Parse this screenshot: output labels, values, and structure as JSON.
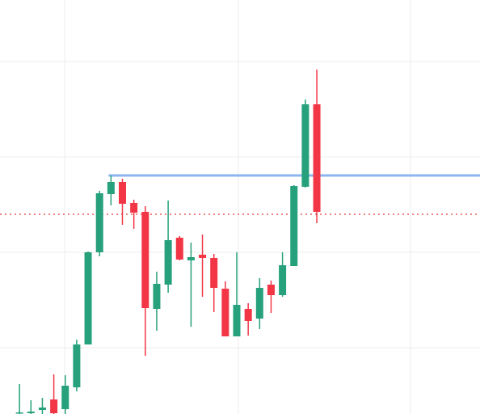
{
  "chart_data": {
    "type": "candlestick",
    "title": "",
    "xlabel": "",
    "ylabel": "",
    "grid": true,
    "ylim": [
      0,
      512
    ],
    "colors": {
      "up": "#26a17b",
      "down": "#f23645",
      "resistance": "#8cb6f0",
      "current_price": "#e53935",
      "grid": "#ececec"
    },
    "resistance_level": {
      "value": 295,
      "x_start": 9,
      "x_end": 52
    },
    "current_price_level": 247,
    "candles": [
      {
        "x": 1,
        "open": 2,
        "high": 37,
        "low": 0,
        "close": 2
      },
      {
        "x": 2,
        "open": 1,
        "high": 17,
        "low": 0,
        "close": 3
      },
      {
        "x": 3,
        "open": 5,
        "high": 20,
        "low": 0,
        "close": 8
      },
      {
        "x": 4,
        "open": 18,
        "high": 49,
        "low": 0,
        "close": 1
      },
      {
        "x": 5,
        "open": 6,
        "high": 48,
        "low": 0,
        "close": 35
      },
      {
        "x": 6,
        "open": 33,
        "high": 92,
        "low": 28,
        "close": 86
      },
      {
        "x": 7,
        "open": 86,
        "high": 201,
        "low": 86,
        "close": 200
      },
      {
        "x": 8,
        "open": 200,
        "high": 276,
        "low": 195,
        "close": 273
      },
      {
        "x": 9,
        "open": 272,
        "high": 295,
        "low": 258,
        "close": 287
      },
      {
        "x": 10,
        "open": 287,
        "high": 291,
        "low": 234,
        "close": 260
      },
      {
        "x": 11,
        "open": 261,
        "high": 265,
        "low": 229,
        "close": 249
      },
      {
        "x": 12,
        "open": 250,
        "high": 257,
        "low": 72,
        "close": 131
      },
      {
        "x": 13,
        "open": 130,
        "high": 176,
        "low": 103,
        "close": 161
      },
      {
        "x": 14,
        "open": 160,
        "high": 264,
        "low": 150,
        "close": 215
      },
      {
        "x": 15,
        "open": 218,
        "high": 220,
        "low": 190,
        "close": 191
      },
      {
        "x": 16,
        "open": 190,
        "high": 212,
        "low": 108,
        "close": 194
      },
      {
        "x": 17,
        "open": 197,
        "high": 222,
        "low": 145,
        "close": 193
      },
      {
        "x": 18,
        "open": 193,
        "high": 198,
        "low": 126,
        "close": 156
      },
      {
        "x": 19,
        "open": 155,
        "high": 164,
        "low": 96,
        "close": 96
      },
      {
        "x": 20,
        "open": 96,
        "high": 200,
        "low": 96,
        "close": 135
      },
      {
        "x": 21,
        "open": 130,
        "high": 137,
        "low": 97,
        "close": 115
      },
      {
        "x": 22,
        "open": 118,
        "high": 168,
        "low": 105,
        "close": 156
      },
      {
        "x": 23,
        "open": 160,
        "high": 165,
        "low": 125,
        "close": 147
      },
      {
        "x": 24,
        "open": 147,
        "high": 200,
        "low": 145,
        "close": 184
      },
      {
        "x": 25,
        "open": 183,
        "high": 283,
        "low": 183,
        "close": 282
      },
      {
        "x": 26,
        "open": 281,
        "high": 389,
        "low": 280,
        "close": 383
      },
      {
        "x": 27,
        "open": 383,
        "high": 426,
        "low": 236,
        "close": 250
      }
    ]
  }
}
